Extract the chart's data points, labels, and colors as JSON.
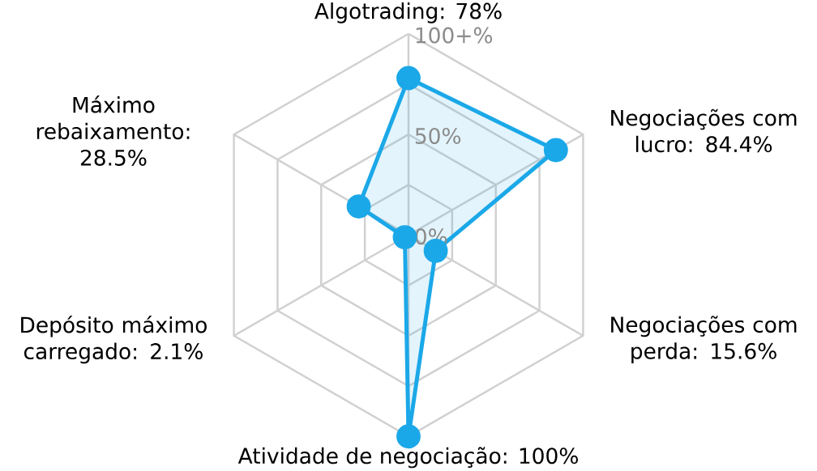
{
  "chart_data": {
    "type": "radar",
    "categories": [
      "Algotrading: 78%",
      "Negociações com lucro: 84.4%",
      "Negociações com perda: 15.6%",
      "Atividade de negociação: 100%",
      "Depósito máximo carregado: 2.1%",
      "Máximo rebaixamento: 28.5%"
    ],
    "series": [
      {
        "color": "#1ba8e8",
        "values": [
          78,
          84.4,
          15.6,
          100,
          2.1,
          28.5
        ]
      }
    ],
    "ylim": [
      0,
      100
    ],
    "yticks": [
      {
        "value": 0,
        "label": "0%"
      },
      {
        "value": 50,
        "label": "50%"
      },
      {
        "value": 100,
        "label": "100+%"
      }
    ],
    "grid": true,
    "marker": "circle"
  }
}
